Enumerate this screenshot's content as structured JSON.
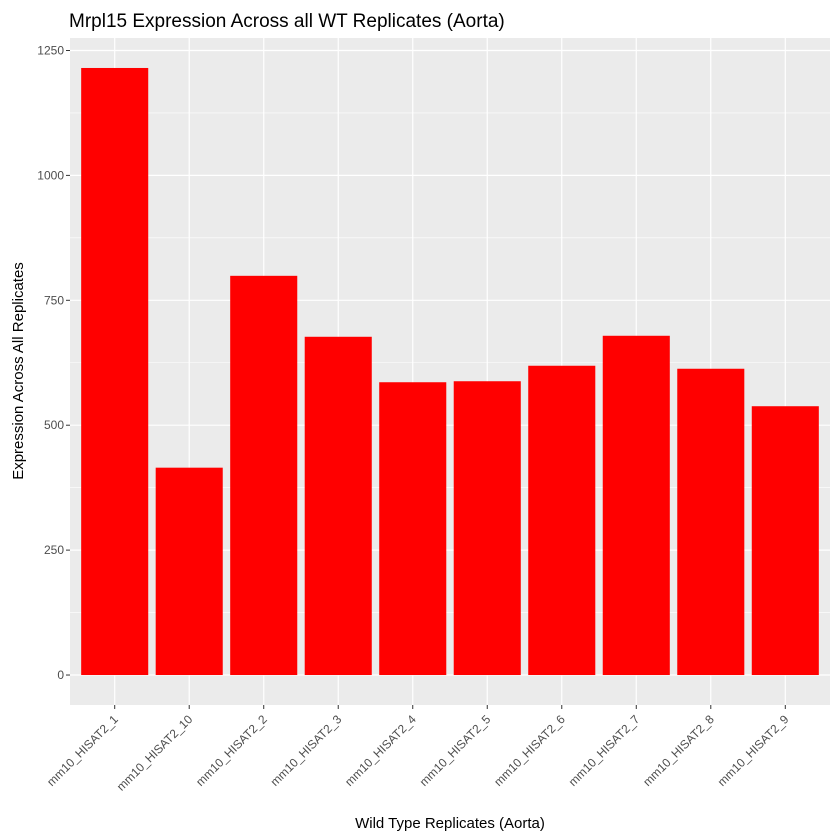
{
  "chart_data": {
    "type": "bar",
    "title": "Mrpl15 Expression Across all WT Replicates (Aorta)",
    "xlabel": "Wild Type Replicates (Aorta)",
    "ylabel": "Expression Across All Replicates",
    "categories": [
      "mm10_HISAT2_1",
      "mm10_HISAT2_10",
      "mm10_HISAT2_2",
      "mm10_HISAT2_3",
      "mm10_HISAT2_4",
      "mm10_HISAT2_5",
      "mm10_HISAT2_6",
      "mm10_HISAT2_7",
      "mm10_HISAT2_8",
      "mm10_HISAT2_9"
    ],
    "values": [
      1215,
      415,
      799,
      677,
      586,
      588,
      619,
      679,
      613,
      538
    ],
    "yticks": [
      0,
      250,
      500,
      750,
      1000,
      1250
    ],
    "ylim": [
      -60,
      1275
    ],
    "bar_color": "#FF0000",
    "panel_background": "#EBEBEB",
    "grid": true
  }
}
